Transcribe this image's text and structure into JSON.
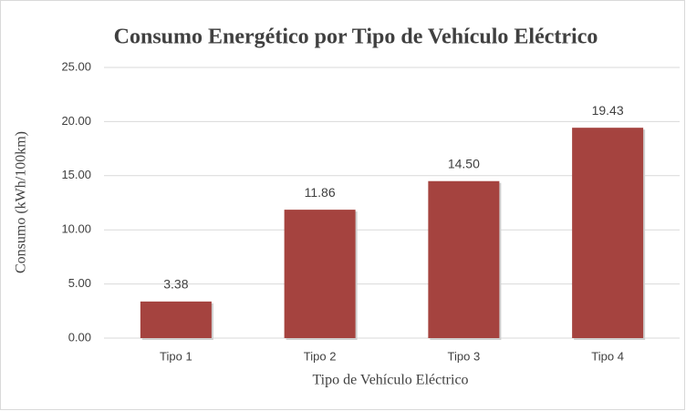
{
  "chart_data": {
    "type": "bar",
    "title": "Consumo Energético por Tipo de Vehículo Eléctrico",
    "xlabel": "Tipo de Vehículo Eléctrico",
    "ylabel": "Consumo (kWh/100km)",
    "categories": [
      "Tipo 1",
      "Tipo 2",
      "Tipo 3",
      "Tipo 4"
    ],
    "values": [
      3.38,
      11.86,
      14.5,
      19.43
    ],
    "value_labels": [
      "3.38",
      "11.86",
      "14.50",
      "19.43"
    ],
    "color": "#a5433f",
    "ylim": [
      0,
      25
    ],
    "yticks": [
      {
        "value": 0,
        "label": "0.00"
      },
      {
        "value": 5,
        "label": "5.00"
      },
      {
        "value": 10,
        "label": "10.00"
      },
      {
        "value": 15,
        "label": "15.00"
      },
      {
        "value": 20,
        "label": "20.00"
      },
      {
        "value": 25,
        "label": "25.00"
      }
    ],
    "grid": true
  }
}
